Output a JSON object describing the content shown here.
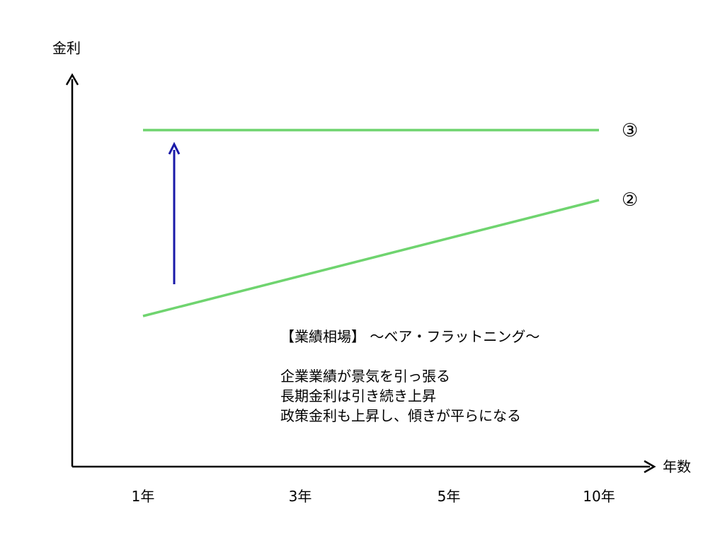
{
  "axis": {
    "y_label": "金利",
    "x_label": "年数",
    "x_ticks": [
      "1年",
      "3年",
      "5年",
      "10年"
    ]
  },
  "curves": {
    "upper_label": "③",
    "lower_label": "②"
  },
  "caption": {
    "heading": "【業績相場】 ～ベア・フラットニング～",
    "lines": [
      "企業業績が景気を引っ張る",
      "長期金利は引き続き上昇",
      "政策金利も上昇し、傾きが平らになる"
    ]
  },
  "colors": {
    "axis": "#000000",
    "curve": "#6fd46f",
    "arrow": "#1a1aa8"
  }
}
